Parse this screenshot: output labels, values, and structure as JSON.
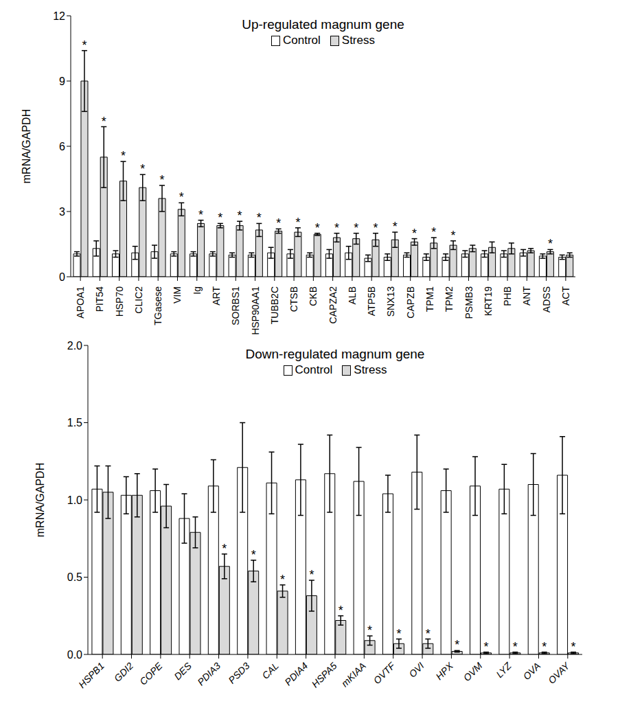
{
  "chart_data": [
    {
      "type": "bar",
      "title": "Up-regulated magnum gene",
      "y_label": "mRNA/GAPDH",
      "legend": "top",
      "categories": [
        "APOA1",
        "PIT54",
        "HSP70",
        "CLIC2",
        "TGasese",
        "VIM",
        "Ig",
        "ART",
        "SORBS1",
        "HSP90AA1",
        "TUBB2C",
        "CTSB",
        "CKB",
        "CAPZA2",
        "ALB",
        "ATP5B",
        "SNX13",
        "CAPZB",
        "TPM1",
        "TPM2",
        "PSMB3",
        "KRT19",
        "PHB",
        "ANT",
        "ADSS",
        "ACT"
      ],
      "series": [
        {
          "name": "Control",
          "color": "#ffffff",
          "values": [
            1.05,
            1.3,
            1.05,
            1.1,
            1.15,
            1.05,
            1.05,
            1.05,
            1.0,
            1.0,
            1.1,
            1.05,
            1.0,
            1.05,
            1.1,
            0.85,
            0.9,
            1.0,
            0.9,
            0.9,
            1.05,
            1.05,
            1.05,
            1.1,
            0.95,
            0.9
          ],
          "errors": [
            0.1,
            0.35,
            0.15,
            0.3,
            0.3,
            0.1,
            0.1,
            0.1,
            0.1,
            0.1,
            0.25,
            0.2,
            0.1,
            0.2,
            0.3,
            0.15,
            0.15,
            0.1,
            0.15,
            0.15,
            0.15,
            0.15,
            0.15,
            0.15,
            0.1,
            0.1
          ]
        },
        {
          "name": "Stress",
          "color": "#d9d9d9",
          "values": [
            9.0,
            5.5,
            4.4,
            4.1,
            3.6,
            3.1,
            2.45,
            2.35,
            2.35,
            2.15,
            2.1,
            2.05,
            1.95,
            1.8,
            1.75,
            1.7,
            1.7,
            1.6,
            1.55,
            1.45,
            1.3,
            1.35,
            1.3,
            1.2,
            1.15,
            1.0
          ],
          "errors": [
            1.4,
            1.4,
            0.9,
            0.6,
            0.6,
            0.3,
            0.15,
            0.1,
            0.2,
            0.3,
            0.1,
            0.2,
            0.05,
            0.2,
            0.25,
            0.3,
            0.35,
            0.15,
            0.25,
            0.2,
            0.15,
            0.25,
            0.25,
            0.1,
            0.1,
            0.1
          ],
          "significance": [
            "*",
            "*",
            "*",
            "*",
            "*",
            "*",
            "*",
            "*",
            "*",
            "*",
            "*",
            "*",
            "*",
            "*",
            "*",
            "*",
            "*",
            "*",
            "*",
            "*",
            null,
            null,
            null,
            null,
            "*",
            null
          ]
        }
      ],
      "ylim": [
        0,
        12
      ],
      "yticks": [
        0,
        3,
        6,
        9,
        12
      ]
    },
    {
      "type": "bar",
      "title": "Down-regulated magnum gene",
      "y_label": "mRNA/GAPDH",
      "legend": "top",
      "categories": [
        "HSPB1",
        "GDI2",
        "COPE",
        "DES",
        "PDIA3",
        "PSD3",
        "CAL",
        "PDIA4",
        "HSPA5",
        "mKIAA",
        "OVTF",
        "OVI",
        "HPX",
        "OVM",
        "LYZ",
        "OVA",
        "OVAY"
      ],
      "series": [
        {
          "name": "Control",
          "color": "#ffffff",
          "values": [
            1.07,
            1.03,
            1.06,
            0.88,
            1.09,
            1.21,
            1.11,
            1.13,
            1.17,
            1.12,
            1.04,
            1.18,
            1.06,
            1.09,
            1.07,
            1.1,
            1.16
          ],
          "errors": [
            0.15,
            0.12,
            0.14,
            0.16,
            0.17,
            0.29,
            0.2,
            0.23,
            0.25,
            0.22,
            0.12,
            0.24,
            0.14,
            0.19,
            0.16,
            0.2,
            0.25
          ]
        },
        {
          "name": "Stress",
          "color": "#d9d9d9",
          "values": [
            1.05,
            1.03,
            0.96,
            0.79,
            0.57,
            0.54,
            0.41,
            0.38,
            0.22,
            0.09,
            0.07,
            0.07,
            0.02,
            0.01,
            0.01,
            0.01,
            0.01
          ],
          "errors": [
            0.17,
            0.14,
            0.14,
            0.1,
            0.08,
            0.07,
            0.04,
            0.1,
            0.03,
            0.03,
            0.03,
            0.03,
            0.005,
            0.005,
            0.005,
            0.005,
            0.005
          ],
          "significance": [
            null,
            null,
            null,
            null,
            "*",
            "*",
            "*",
            "*",
            "*",
            "*",
            "*",
            "*",
            "*",
            "*",
            "*",
            "*",
            "*"
          ]
        }
      ],
      "ylim": [
        0,
        2
      ],
      "yticks": [
        {
          "value": 0,
          "label": "0.0"
        },
        {
          "value": 0.5,
          "label": "0.5"
        },
        {
          "value": 1,
          "label": "1.0"
        },
        {
          "value": 1.5,
          "label": "1.5"
        },
        {
          "value": 2,
          "label": "2.0"
        }
      ]
    }
  ]
}
